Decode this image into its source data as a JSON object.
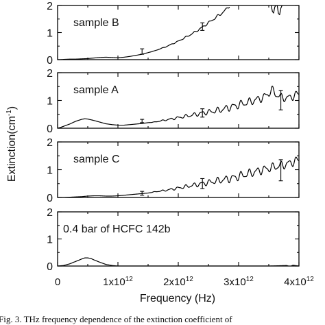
{
  "chart_data": {
    "type": "line",
    "ylabel": "Extinction(cm",
    "ylabel_sup": "-1",
    "ylabel_end": ")",
    "xlabel": "Frequency (Hz)",
    "xlim": [
      0,
      4000000000000.0
    ],
    "x_ticks": [
      {
        "value": 0,
        "mant": "0",
        "exp": ""
      },
      {
        "value": 1000000000000.0,
        "mant": "1x10",
        "exp": "12"
      },
      {
        "value": 2000000000000.0,
        "mant": "2x10",
        "exp": "12"
      },
      {
        "value": 3000000000000.0,
        "mant": "3x10",
        "exp": "12"
      },
      {
        "value": 4000000000000.0,
        "mant": "4x10",
        "exp": "12"
      }
    ],
    "panels": [
      {
        "label": "sample B",
        "ylim": [
          0,
          2
        ],
        "y_ticks": [
          "0",
          "1",
          "2"
        ],
        "points": [
          [
            0.0,
            0.0
          ],
          [
            0.05,
            0.0
          ],
          [
            0.1,
            0.01
          ],
          [
            0.2,
            0.02
          ],
          [
            0.3,
            0.02
          ],
          [
            0.4,
            0.03
          ],
          [
            0.5,
            0.04
          ],
          [
            0.55,
            0.05
          ],
          [
            0.6,
            0.06
          ],
          [
            0.7,
            0.08
          ],
          [
            0.8,
            0.09
          ],
          [
            0.9,
            0.08
          ],
          [
            1.0,
            0.07
          ],
          [
            1.1,
            0.09
          ],
          [
            1.2,
            0.12
          ],
          [
            1.3,
            0.16
          ],
          [
            1.4,
            0.2
          ],
          [
            1.5,
            0.26
          ],
          [
            1.6,
            0.32
          ],
          [
            1.7,
            0.4
          ],
          [
            1.8,
            0.48
          ],
          [
            1.9,
            0.58
          ],
          [
            2.0,
            0.68
          ],
          [
            2.1,
            0.8
          ],
          [
            2.2,
            0.92
          ],
          [
            2.3,
            1.05
          ],
          [
            2.4,
            1.2
          ],
          [
            2.5,
            1.36
          ],
          [
            2.6,
            1.52
          ],
          [
            2.7,
            1.68
          ],
          [
            2.8,
            1.86
          ],
          [
            2.85,
            2.0
          ]
        ],
        "wiggle": 0.05,
        "extra_segments": [
          [
            [
              3.54,
              2.0
            ],
            [
              3.56,
              1.78
            ],
            [
              3.58,
              1.72
            ],
            [
              3.6,
              1.95
            ],
            [
              3.62,
              2.0
            ]
          ],
          [
            [
              3.64,
              2.0
            ],
            [
              3.66,
              1.7
            ],
            [
              3.68,
              1.66
            ],
            [
              3.7,
              1.9
            ],
            [
              3.72,
              2.0
            ]
          ]
        ],
        "error_bars": [
          {
            "x": 1.4,
            "y": 0.3,
            "lo": 0.2,
            "hi": 0.4
          },
          {
            "x": 2.4,
            "y": 1.22,
            "lo": 1.08,
            "hi": 1.36
          }
        ]
      },
      {
        "label": "sample A",
        "ylim": [
          0,
          2
        ],
        "y_ticks": [
          "0",
          "1",
          "2"
        ],
        "points": [
          [
            0.0,
            0.0
          ],
          [
            0.05,
            0.03
          ],
          [
            0.1,
            0.07
          ],
          [
            0.2,
            0.15
          ],
          [
            0.3,
            0.25
          ],
          [
            0.4,
            0.32
          ],
          [
            0.45,
            0.34
          ],
          [
            0.5,
            0.33
          ],
          [
            0.6,
            0.28
          ],
          [
            0.7,
            0.22
          ],
          [
            0.8,
            0.16
          ],
          [
            0.9,
            0.13
          ],
          [
            1.0,
            0.11
          ],
          [
            1.1,
            0.11
          ],
          [
            1.2,
            0.13
          ],
          [
            1.3,
            0.15
          ],
          [
            1.4,
            0.17
          ],
          [
            1.5,
            0.2
          ],
          [
            1.6,
            0.22
          ],
          [
            1.7,
            0.26
          ],
          [
            1.8,
            0.3
          ],
          [
            1.9,
            0.34
          ],
          [
            2.0,
            0.38
          ],
          [
            2.1,
            0.42
          ],
          [
            2.2,
            0.46
          ],
          [
            2.3,
            0.5
          ],
          [
            2.4,
            0.55
          ],
          [
            2.5,
            0.58
          ],
          [
            2.6,
            0.62
          ],
          [
            2.7,
            0.66
          ],
          [
            2.8,
            0.72
          ],
          [
            2.9,
            0.78
          ],
          [
            3.0,
            0.84
          ],
          [
            3.1,
            0.9
          ],
          [
            3.2,
            0.96
          ],
          [
            3.3,
            1.03
          ],
          [
            3.4,
            1.1
          ],
          [
            3.5,
            1.25
          ],
          [
            3.55,
            1.4
          ],
          [
            3.6,
            1.25
          ],
          [
            3.7,
            1.12
          ],
          [
            3.8,
            1.08
          ],
          [
            3.9,
            1.15
          ],
          [
            4.0,
            1.25
          ]
        ],
        "wiggle": 0.11,
        "extra_segments": [],
        "error_bars": [
          {
            "x": 1.4,
            "y": 0.26,
            "lo": 0.2,
            "hi": 0.32
          },
          {
            "x": 2.4,
            "y": 0.55,
            "lo": 0.4,
            "hi": 0.7
          },
          {
            "x": 3.7,
            "y": 1.0,
            "lo": 0.66,
            "hi": 1.36
          }
        ]
      },
      {
        "label": "sample C",
        "ylim": [
          0,
          2
        ],
        "y_ticks": [
          "0",
          "1",
          "2"
        ],
        "points": [
          [
            0.0,
            0.0
          ],
          [
            0.1,
            0.0
          ],
          [
            0.2,
            0.01
          ],
          [
            0.3,
            0.02
          ],
          [
            0.4,
            0.03
          ],
          [
            0.5,
            0.05
          ],
          [
            0.6,
            0.06
          ],
          [
            0.7,
            0.06
          ],
          [
            0.8,
            0.05
          ],
          [
            0.9,
            0.05
          ],
          [
            1.0,
            0.06
          ],
          [
            1.1,
            0.08
          ],
          [
            1.2,
            0.1
          ],
          [
            1.3,
            0.12
          ],
          [
            1.4,
            0.14
          ],
          [
            1.5,
            0.16
          ],
          [
            1.6,
            0.2
          ],
          [
            1.7,
            0.23
          ],
          [
            1.8,
            0.26
          ],
          [
            1.9,
            0.3
          ],
          [
            2.0,
            0.34
          ],
          [
            2.1,
            0.38
          ],
          [
            2.2,
            0.42
          ],
          [
            2.3,
            0.46
          ],
          [
            2.4,
            0.5
          ],
          [
            2.5,
            0.54
          ],
          [
            2.6,
            0.58
          ],
          [
            2.7,
            0.62
          ],
          [
            2.8,
            0.66
          ],
          [
            2.9,
            0.7
          ],
          [
            3.0,
            0.76
          ],
          [
            3.1,
            0.82
          ],
          [
            3.2,
            0.88
          ],
          [
            3.3,
            0.94
          ],
          [
            3.4,
            1.0
          ],
          [
            3.5,
            1.05
          ],
          [
            3.6,
            1.1
          ],
          [
            3.7,
            1.15
          ],
          [
            3.8,
            1.2
          ],
          [
            3.9,
            1.28
          ],
          [
            4.0,
            1.35
          ]
        ],
        "wiggle": 0.12,
        "extra_segments": [],
        "error_bars": [
          {
            "x": 1.4,
            "y": 0.15,
            "lo": 0.08,
            "hi": 0.22
          },
          {
            "x": 2.4,
            "y": 0.5,
            "lo": 0.32,
            "hi": 0.68
          },
          {
            "x": 3.7,
            "y": 0.98,
            "lo": 0.6,
            "hi": 1.36
          }
        ]
      },
      {
        "label": "0.4 bar of HCFC 142b",
        "ylim": [
          0,
          2
        ],
        "y_ticks": [
          "0",
          "1",
          "2"
        ],
        "points": [
          [
            0.0,
            0.0
          ],
          [
            0.1,
            0.02
          ],
          [
            0.2,
            0.08
          ],
          [
            0.3,
            0.17
          ],
          [
            0.4,
            0.26
          ],
          [
            0.45,
            0.3
          ],
          [
            0.5,
            0.3
          ],
          [
            0.55,
            0.28
          ],
          [
            0.6,
            0.23
          ],
          [
            0.7,
            0.14
          ],
          [
            0.8,
            0.06
          ],
          [
            0.9,
            0.02
          ],
          [
            1.0,
            0.0
          ],
          [
            2.0,
            0.0
          ],
          [
            3.0,
            0.0
          ],
          [
            3.5,
            0.0
          ],
          [
            3.8,
            0.02
          ],
          [
            3.85,
            -0.02
          ],
          [
            3.9,
            0.03
          ],
          [
            4.0,
            0.0
          ]
        ],
        "wiggle": 0.0,
        "extra_segments": [],
        "error_bars": []
      }
    ]
  },
  "caption": "Fig. 3.   THz frequency dependence of the extinction coefficient of"
}
